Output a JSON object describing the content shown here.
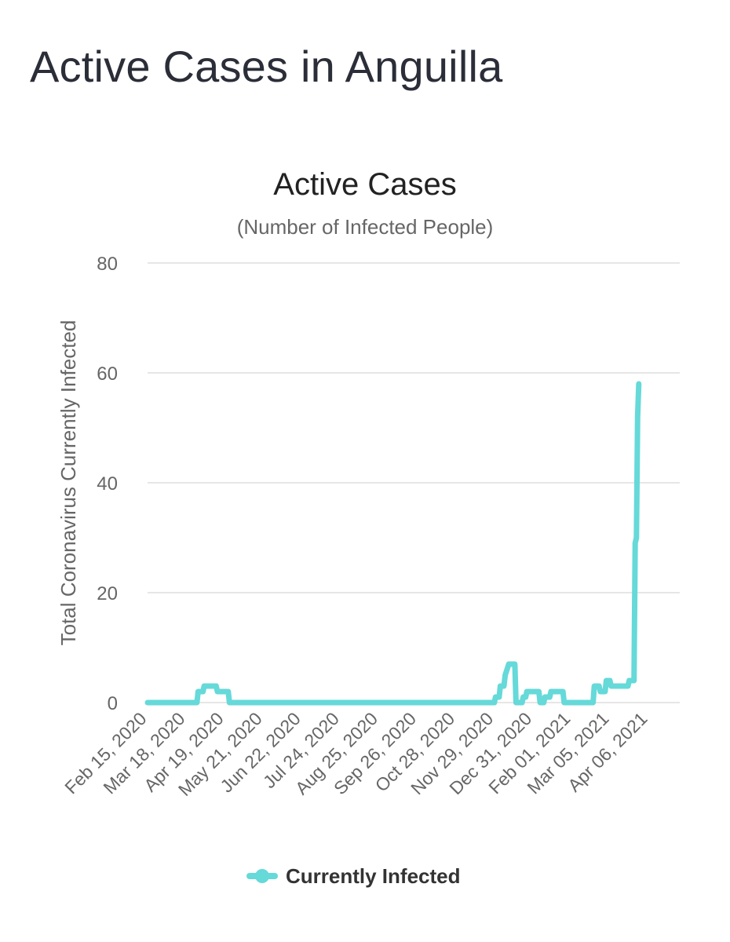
{
  "page": {
    "title": "Active Cases in Anguilla"
  },
  "chart_data": {
    "type": "line",
    "title": "Active Cases",
    "subtitle": "(Number of Infected People)",
    "xlabel": "",
    "ylabel": "Total Coronavirus Currently Infected",
    "ylim": [
      0,
      80
    ],
    "yticks": [
      0,
      20,
      40,
      60,
      80
    ],
    "grid": true,
    "legend_position": "bottom",
    "color": "#66d9d9",
    "x_tick_labels": [
      "Feb 15, 2020",
      "Mar 18, 2020",
      "Apr 19, 2020",
      "May 21, 2020",
      "Jun 22, 2020",
      "Jul 24, 2020",
      "Aug 25, 2020",
      "Sep 26, 2020",
      "Oct 28, 2020",
      "Nov 29, 2020",
      "Dec 31, 2020",
      "Feb 01, 2021",
      "Mar 05, 2021",
      "Apr 06, 2021"
    ],
    "x_start": "2020-02-15",
    "x_end": "2021-05-02",
    "series": [
      {
        "name": "Currently Infected",
        "points": [
          [
            "2020-02-15",
            0
          ],
          [
            "2020-03-27",
            0
          ],
          [
            "2020-03-28",
            2
          ],
          [
            "2020-04-01",
            2
          ],
          [
            "2020-04-02",
            3
          ],
          [
            "2020-04-12",
            3
          ],
          [
            "2020-04-13",
            2
          ],
          [
            "2020-04-22",
            2
          ],
          [
            "2020-04-23",
            0
          ],
          [
            "2020-11-29",
            0
          ],
          [
            "2020-11-30",
            1
          ],
          [
            "2020-12-03",
            1
          ],
          [
            "2020-12-04",
            3
          ],
          [
            "2020-12-07",
            3
          ],
          [
            "2020-12-08",
            5
          ],
          [
            "2020-12-11",
            7
          ],
          [
            "2020-12-16",
            7
          ],
          [
            "2020-12-17",
            0
          ],
          [
            "2020-12-22",
            0
          ],
          [
            "2020-12-23",
            1
          ],
          [
            "2020-12-25",
            1
          ],
          [
            "2020-12-26",
            2
          ],
          [
            "2021-01-05",
            2
          ],
          [
            "2021-01-06",
            0
          ],
          [
            "2021-01-09",
            0
          ],
          [
            "2021-01-10",
            1
          ],
          [
            "2021-01-14",
            1
          ],
          [
            "2021-01-15",
            2
          ],
          [
            "2021-01-25",
            2
          ],
          [
            "2021-01-26",
            0
          ],
          [
            "2021-02-19",
            0
          ],
          [
            "2021-02-20",
            3
          ],
          [
            "2021-02-24",
            3
          ],
          [
            "2021-02-25",
            2
          ],
          [
            "2021-03-01",
            2
          ],
          [
            "2021-03-02",
            4
          ],
          [
            "2021-03-05",
            4
          ],
          [
            "2021-03-06",
            3
          ],
          [
            "2021-03-20",
            3
          ],
          [
            "2021-03-21",
            4
          ],
          [
            "2021-03-25",
            4
          ],
          [
            "2021-03-26",
            29
          ],
          [
            "2021-03-27",
            30
          ],
          [
            "2021-03-28",
            52
          ],
          [
            "2021-03-29",
            58
          ]
        ]
      }
    ]
  }
}
